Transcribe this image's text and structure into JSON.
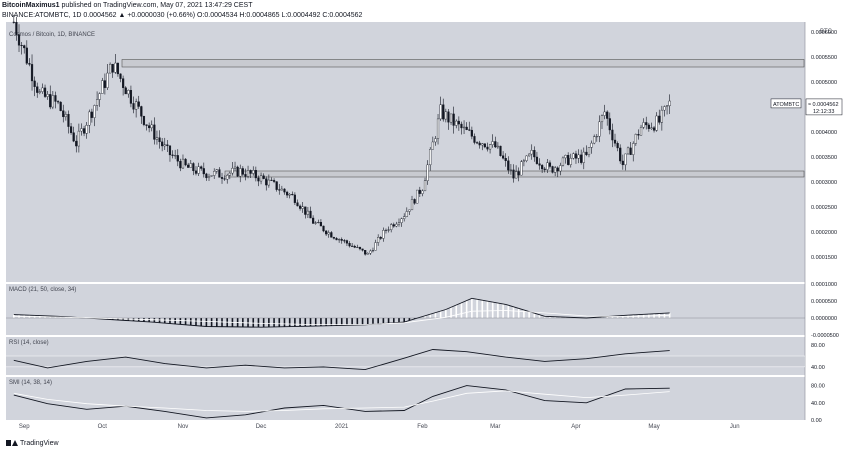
{
  "header": {
    "publisher": "BitcoinMaximus1",
    "published_text": "published on TradingView.com, May 07, 2021 13:47:29 CEST",
    "symbol_line": "BINANCE:ATOMBTC, 1D 0.0004562 ▲ +0.0000030 (+0.66%) O:0.0004534 H:0.0004865 L:0.0004492 C:0.0004562"
  },
  "footer": {
    "brand": "TradingView"
  },
  "colors": {
    "plot_bg": "#d1d4dc",
    "candle": "#131722",
    "box_fill": "#c8cad0",
    "box_stroke": "#555555",
    "rsi_band": "#c9ccd4",
    "signal_line": "#ffffff"
  },
  "chart_data": [
    {
      "type": "candlestick",
      "title": "Cosmos / Bitcoin, 1D, BINANCE",
      "currency": "BTC",
      "ylim": [
        0.0001,
        0.00062
      ],
      "y_ticks": [
        "0.0006000",
        "0.0005500",
        "0.0005000",
        "0.0004500",
        "0.0004000",
        "0.0003500",
        "0.0003000",
        "0.0002500",
        "0.0002000",
        "0.0001500"
      ],
      "last_price": {
        "label": "ATOMBTC",
        "value": "0.0004562",
        "countdown": "12:12:33"
      },
      "resistance_zone": [
        0.00053,
        0.000545
      ],
      "support_zone": [
        0.00031,
        0.000322
      ],
      "x_months": [
        "Sep",
        "Oct",
        "Nov",
        "Dec",
        "2021",
        "Feb",
        "Mar",
        "Apr",
        "May",
        "Jun"
      ],
      "x": [
        "2020-08-28",
        "2020-09-07",
        "2020-09-14",
        "2020-09-21",
        "2020-09-28",
        "2020-10-05",
        "2020-10-12",
        "2020-10-19",
        "2020-10-26",
        "2020-11-02",
        "2020-11-09",
        "2020-11-16",
        "2020-11-23",
        "2020-11-30",
        "2020-12-07",
        "2020-12-14",
        "2020-12-21",
        "2020-12-28",
        "2021-01-04",
        "2021-01-11",
        "2021-01-18",
        "2021-01-25",
        "2021-02-01",
        "2021-02-08",
        "2021-02-15",
        "2021-02-22",
        "2021-03-01",
        "2021-03-08",
        "2021-03-15",
        "2021-03-22",
        "2021-03-29",
        "2021-04-05",
        "2021-04-12",
        "2021-04-19",
        "2021-04-26",
        "2021-05-03",
        "2021-05-07"
      ],
      "close": [
        0.00062,
        0.000475,
        0.000455,
        0.000378,
        0.000455,
        0.000535,
        0.00047,
        0.00041,
        0.00036,
        0.00033,
        0.000318,
        0.000315,
        0.000322,
        0.00031,
        0.00029,
        0.000268,
        0.00022,
        0.000195,
        0.000175,
        0.000155,
        0.000205,
        0.000235,
        0.00029,
        0.00044,
        0.00041,
        0.000385,
        0.00037,
        0.00031,
        0.000355,
        0.000325,
        0.000345,
        0.00035,
        0.00044,
        0.000335,
        0.00041,
        0.00042,
        0.0004562
      ]
    },
    {
      "type": "line",
      "title": "MACD (21, 50, close, 34)",
      "ylim": [
        -5e-05,
        0.0001
      ],
      "y_ticks": [
        "0.0001000",
        "0.0000500",
        "0.0000000",
        "-0.0000500"
      ],
      "x": [
        "2020-08-28",
        "2020-09-14",
        "2020-10-01",
        "2020-10-20",
        "2020-11-10",
        "2020-12-01",
        "2020-12-20",
        "2021-01-10",
        "2021-01-25",
        "2021-02-10",
        "2021-02-20",
        "2021-03-05",
        "2021-03-20",
        "2021-04-05",
        "2021-04-20",
        "2021-05-07"
      ],
      "series": [
        {
          "values": [
            1e-05,
            5e-06,
            -3e-06,
            -1.2e-05,
            -2.5e-05,
            -2.7e-05,
            -2.4e-05,
            -2e-05,
            -1.2e-05,
            2.5e-05,
            5.8e-05,
            4e-05,
            5e-06,
            0.0,
            8e-06,
            1.5e-05
          ]
        },
        {
          "values": [
            5e-06,
            3e-06,
            -1e-06,
            -5e-06,
            -1e-05,
            -1.6e-05,
            -1.9e-05,
            -1.9e-05,
            -1.4e-05,
            2e-06,
            2e-05,
            2.2e-05,
            1.5e-05,
            6e-06,
            4e-06,
            8e-06
          ]
        }
      ]
    },
    {
      "type": "line",
      "title": "RSI (14, close)",
      "ylim": [
        25,
        95
      ],
      "y_ticks": [
        "80.00",
        "40.00"
      ],
      "band": [
        40,
        60
      ],
      "x": [
        "2020-08-28",
        "2020-09-10",
        "2020-09-25",
        "2020-10-10",
        "2020-10-25",
        "2020-11-10",
        "2020-11-25",
        "2020-12-10",
        "2020-12-25",
        "2021-01-10",
        "2021-01-25",
        "2021-02-05",
        "2021-02-18",
        "2021-03-05",
        "2021-03-20",
        "2021-04-05",
        "2021-04-20",
        "2021-05-07"
      ],
      "series": [
        {
          "values": [
            52,
            38,
            50,
            58,
            46,
            38,
            43,
            38,
            40,
            35,
            56,
            72,
            68,
            58,
            50,
            55,
            64,
            70
          ]
        }
      ]
    },
    {
      "type": "line",
      "title": "SMI (14, 38, 14)",
      "ylim": [
        0,
        100
      ],
      "y_ticks": [
        "80.00",
        "40.00",
        "0.00"
      ],
      "x": [
        "2020-08-28",
        "2020-09-10",
        "2020-09-25",
        "2020-10-10",
        "2020-10-25",
        "2020-11-10",
        "2020-11-25",
        "2020-12-10",
        "2020-12-25",
        "2021-01-10",
        "2021-01-25",
        "2021-02-05",
        "2021-02-18",
        "2021-03-05",
        "2021-03-20",
        "2021-04-05",
        "2021-04-20",
        "2021-05-07"
      ],
      "series": [
        {
          "values": [
            58,
            38,
            25,
            32,
            20,
            5,
            12,
            28,
            34,
            20,
            22,
            55,
            80,
            70,
            45,
            40,
            72,
            74
          ]
        },
        {
          "values": [
            62,
            48,
            38,
            32,
            28,
            22,
            20,
            22,
            26,
            28,
            30,
            44,
            62,
            68,
            60,
            52,
            58,
            66
          ]
        }
      ]
    }
  ]
}
